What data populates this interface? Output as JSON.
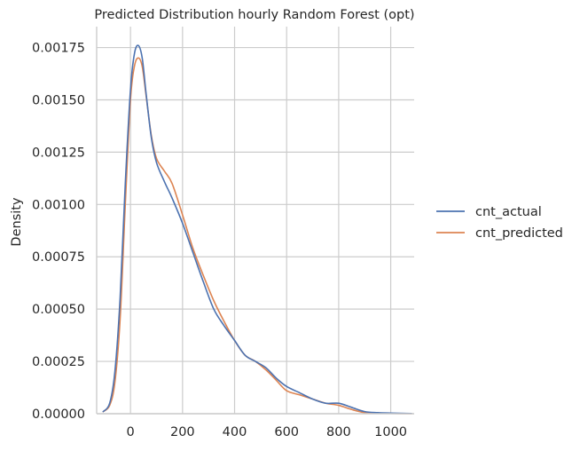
{
  "chart_data": {
    "type": "line",
    "title": "Predicted Distribution hourly Random Forest (opt)",
    "xlabel": "",
    "ylabel": "Density",
    "xlim": [
      -130,
      1090
    ],
    "ylim": [
      0,
      0.00185
    ],
    "xticks": [
      0,
      200,
      400,
      600,
      800,
      1000
    ],
    "xtick_labels": [
      "0",
      "200",
      "400",
      "600",
      "800",
      "1000"
    ],
    "yticks": [
      0,
      0.00025,
      0.0005,
      0.00075,
      0.001,
      0.00125,
      0.0015,
      0.00175
    ],
    "ytick_labels": [
      "0.00000",
      "0.00025",
      "0.00050",
      "0.00075",
      "0.00100",
      "0.00125",
      "0.00150",
      "0.00175"
    ],
    "grid": true,
    "legend_position": "right",
    "series": [
      {
        "name": "cnt_actual",
        "color": "#4c72b0",
        "points": [
          [
            -105,
            1e-05
          ],
          [
            -80,
            5e-05
          ],
          [
            -60,
            0.0002
          ],
          [
            -40,
            0.00055
          ],
          [
            -20,
            0.0011
          ],
          [
            0,
            0.00155
          ],
          [
            15,
            0.00172
          ],
          [
            30,
            0.00176
          ],
          [
            45,
            0.0017
          ],
          [
            60,
            0.00153
          ],
          [
            80,
            0.00132
          ],
          [
            100,
            0.0012
          ],
          [
            130,
            0.00111
          ],
          [
            160,
            0.00103
          ],
          [
            200,
            0.00091
          ],
          [
            240,
            0.00077
          ],
          [
            280,
            0.00063
          ],
          [
            320,
            0.0005
          ],
          [
            360,
            0.00042
          ],
          [
            400,
            0.00035
          ],
          [
            440,
            0.00028
          ],
          [
            480,
            0.00025
          ],
          [
            520,
            0.00022
          ],
          [
            560,
            0.00017
          ],
          [
            600,
            0.00013
          ],
          [
            650,
            0.0001
          ],
          [
            700,
            7e-05
          ],
          [
            750,
            5e-05
          ],
          [
            800,
            5e-05
          ],
          [
            850,
            3e-05
          ],
          [
            900,
            1e-05
          ],
          [
            950,
            5e-06
          ],
          [
            1000,
            3e-06
          ],
          [
            1080,
            1e-06
          ]
        ]
      },
      {
        "name": "cnt_predicted",
        "color": "#dd8452",
        "points": [
          [
            -105,
            1e-05
          ],
          [
            -80,
            4e-05
          ],
          [
            -60,
            0.00015
          ],
          [
            -40,
            0.00045
          ],
          [
            -20,
            0.001
          ],
          [
            0,
            0.0015
          ],
          [
            15,
            0.00166
          ],
          [
            30,
            0.0017
          ],
          [
            45,
            0.00166
          ],
          [
            60,
            0.00152
          ],
          [
            80,
            0.00133
          ],
          [
            100,
            0.00122
          ],
          [
            130,
            0.00116
          ],
          [
            160,
            0.0011
          ],
          [
            200,
            0.00095
          ],
          [
            240,
            0.00079
          ],
          [
            280,
            0.00066
          ],
          [
            320,
            0.00054
          ],
          [
            360,
            0.00044
          ],
          [
            400,
            0.00035
          ],
          [
            440,
            0.00028
          ],
          [
            480,
            0.00025
          ],
          [
            520,
            0.00021
          ],
          [
            560,
            0.00016
          ],
          [
            600,
            0.00011
          ],
          [
            650,
            9e-05
          ],
          [
            700,
            7e-05
          ],
          [
            750,
            5e-05
          ],
          [
            800,
            4e-05
          ],
          [
            850,
            2e-05
          ],
          [
            900,
            5e-06
          ],
          [
            950,
            2e-06
          ],
          [
            1000,
            1e-06
          ],
          [
            1080,
            5e-07
          ]
        ]
      }
    ]
  }
}
